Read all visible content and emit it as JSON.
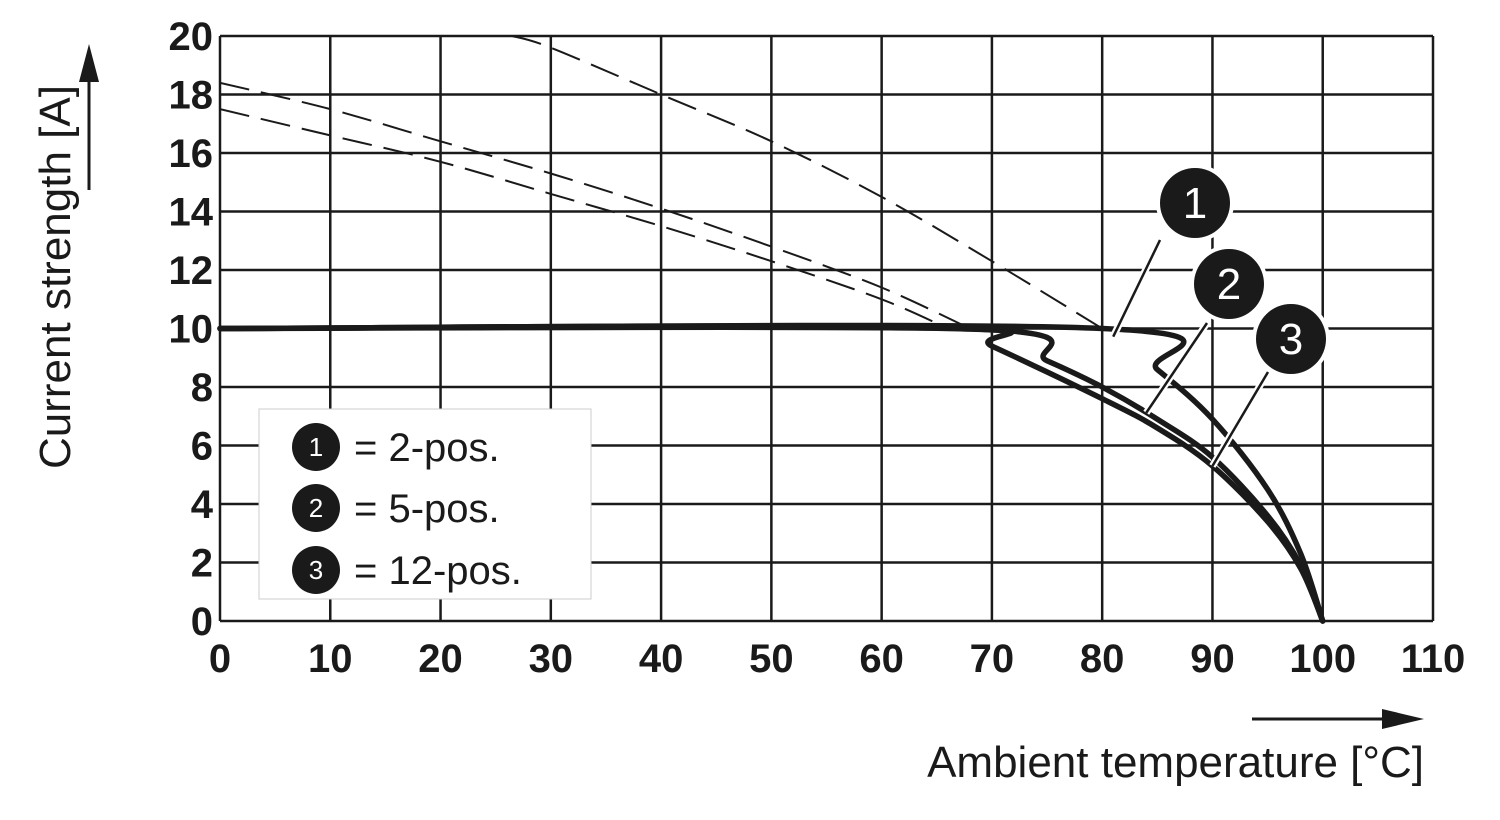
{
  "chart_data": {
    "type": "line",
    "title": "",
    "xlabel": "Ambient temperature [°C]",
    "ylabel": "Current strength [A]",
    "xlim": [
      0,
      110
    ],
    "ylim": [
      0,
      20
    ],
    "x_ticks": [
      "0",
      "10",
      "20",
      "30",
      "40",
      "50",
      "60",
      "70",
      "80",
      "90",
      "100",
      "110"
    ],
    "y_ticks": [
      "0",
      "2",
      "4",
      "6",
      "8",
      "10",
      "12",
      "14",
      "16",
      "18",
      "20"
    ],
    "grid": true,
    "series": [
      {
        "name": "2-pos.",
        "badge": "1",
        "derating": [
          [
            0,
            10
          ],
          [
            80,
            10
          ],
          [
            85,
            8.6
          ],
          [
            90,
            6.9
          ],
          [
            95,
            4.5
          ],
          [
            98,
            2.3
          ],
          [
            100,
            0
          ]
        ],
        "dashed": [
          [
            26.5,
            20
          ],
          [
            30,
            19.6
          ],
          [
            40,
            18
          ],
          [
            50,
            16.4
          ],
          [
            60,
            14.5
          ],
          [
            70,
            12.3
          ],
          [
            80,
            10
          ]
        ]
      },
      {
        "name": "5-pos.",
        "badge": "2",
        "derating": [
          [
            0,
            10
          ],
          [
            68,
            10
          ],
          [
            75,
            8.9
          ],
          [
            80,
            8.0
          ],
          [
            85,
            6.9
          ],
          [
            90,
            5.6
          ],
          [
            95,
            3.6
          ],
          [
            98,
            1.9
          ],
          [
            100,
            0
          ]
        ],
        "dashed": [
          [
            0,
            18.4
          ],
          [
            10,
            17.5
          ],
          [
            20,
            16.4
          ],
          [
            30,
            15.3
          ],
          [
            40,
            14.1
          ],
          [
            50,
            12.8
          ],
          [
            60,
            11.4
          ],
          [
            68,
            10
          ]
        ]
      },
      {
        "name": "12-pos.",
        "badge": "3",
        "derating": [
          [
            0,
            10
          ],
          [
            66,
            10
          ],
          [
            70,
            9.4
          ],
          [
            80,
            7.6
          ],
          [
            85,
            6.6
          ],
          [
            90,
            5.3
          ],
          [
            95,
            3.4
          ],
          [
            98,
            1.8
          ],
          [
            100,
            0
          ]
        ],
        "dashed": [
          [
            0,
            17.5
          ],
          [
            10,
            16.6
          ],
          [
            20,
            15.7
          ],
          [
            30,
            14.6
          ],
          [
            40,
            13.5
          ],
          [
            50,
            12.3
          ],
          [
            60,
            11.0
          ],
          [
            66,
            10
          ]
        ]
      }
    ],
    "legend": {
      "placement": "bottom-left",
      "entries": [
        {
          "badge": "1",
          "text": "= 2-pos."
        },
        {
          "badge": "2",
          "text": "= 5-pos."
        },
        {
          "badge": "3",
          "text": "= 12-pos."
        }
      ]
    },
    "callouts": [
      {
        "badge": "1",
        "points_to_x": 81
      },
      {
        "badge": "2",
        "points_to_x": 84
      },
      {
        "badge": "3",
        "points_to_x": 90
      }
    ],
    "colors": {
      "ink": "#1a1a1a",
      "grid": "#1a1a1a",
      "background": "#ffffff"
    }
  }
}
